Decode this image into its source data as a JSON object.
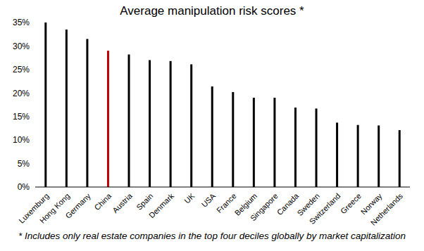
{
  "chart_data": {
    "type": "bar",
    "title": "Average manipulation risk scores *",
    "annotations": [
      "* Includes only real estate companies in the top four deciles globally by market capitalization"
    ],
    "categories": [
      "Luxemburg",
      "Hong Kong",
      "Germany",
      "China",
      "Austria",
      "Spain",
      "Denmark",
      "UK",
      "USA",
      "France",
      "Belgium",
      "Singapore",
      "Canada",
      "Sweden",
      "Switzerland",
      "Greece",
      "Norway",
      "Netherlands"
    ],
    "values": [
      35,
      33.5,
      31.5,
      29,
      28.2,
      27,
      26.8,
      26.1,
      21.4,
      20.2,
      19,
      19,
      16.9,
      16.7,
      13.7,
      13.2,
      13.1,
      12.1
    ],
    "colors": [
      "#000000",
      "#000000",
      "#000000",
      "#c00000",
      "#000000",
      "#000000",
      "#000000",
      "#000000",
      "#000000",
      "#000000",
      "#000000",
      "#000000",
      "#000000",
      "#000000",
      "#000000",
      "#000000",
      "#000000",
      "#000000"
    ],
    "ylim": [
      0,
      35
    ],
    "yticks": [
      {
        "value": 0,
        "label": "0%"
      },
      {
        "value": 5,
        "label": "5%"
      },
      {
        "value": 10,
        "label": "10%"
      },
      {
        "value": 15,
        "label": "15%"
      },
      {
        "value": 20,
        "label": "20%"
      },
      {
        "value": 25,
        "label": "25%"
      },
      {
        "value": 30,
        "label": "30%"
      },
      {
        "value": 35,
        "label": "35%"
      }
    ],
    "grid": false
  }
}
